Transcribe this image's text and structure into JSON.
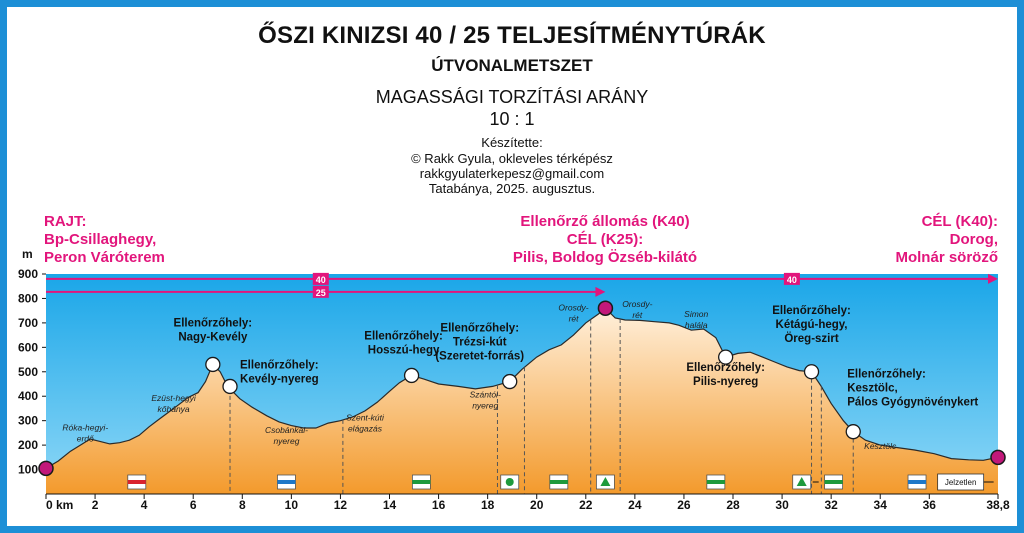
{
  "header": {
    "title": "ŐSZI KINIZSI 40 / 25 TELJESÍTMÉNYTÚRÁK",
    "subtitle": "ÚTVONALMETSZET",
    "ratio_label": "MAGASSÁGI TORZÍTÁSI ARÁNY",
    "ratio_value": "10 : 1",
    "credits": [
      "Készítette:",
      "© Rakk Gyula, okleveles térképész",
      "rakkgyulaterkepesz@gmail.com",
      "Tatabánya, 2025. augusztus."
    ]
  },
  "endpoints": {
    "start": [
      "RAJT:",
      "Bp-Csillaghegy,",
      "Peron Váróterem"
    ],
    "middle": [
      "Ellenőrző állomás (K40)",
      "CÉL (K25):",
      "Pilis, Boldog Özséb-kilátó"
    ],
    "end": [
      "CÉL (K40):",
      "Dorog,",
      "Molnár söröző"
    ]
  },
  "colors": {
    "frame": "#1d8fd6",
    "magenta": "#e2157c",
    "sky_top": "#1aa6e8",
    "sky_bottom": "#8fd8f7",
    "terrain_top": "#fff0dc",
    "terrain_bottom": "#f39a2c"
  },
  "chart_data": {
    "type": "area",
    "y_unit": "m",
    "x_unit": "km",
    "ylim": [
      0,
      900
    ],
    "xlim": [
      0,
      38.8
    ],
    "y_ticks": [
      100,
      200,
      300,
      400,
      500,
      600,
      700,
      800,
      900
    ],
    "x_ticks": [
      {
        "v": 0,
        "label": "0 km"
      },
      {
        "v": 2,
        "label": "2"
      },
      {
        "v": 4,
        "label": "4"
      },
      {
        "v": 6,
        "label": "6"
      },
      {
        "v": 8,
        "label": "8"
      },
      {
        "v": 10,
        "label": "10"
      },
      {
        "v": 12,
        "label": "12"
      },
      {
        "v": 14,
        "label": "14"
      },
      {
        "v": 16,
        "label": "16"
      },
      {
        "v": 18,
        "label": "18"
      },
      {
        "v": 20,
        "label": "20"
      },
      {
        "v": 22,
        "label": "22"
      },
      {
        "v": 24,
        "label": "24"
      },
      {
        "v": 26,
        "label": "26"
      },
      {
        "v": 28,
        "label": "28"
      },
      {
        "v": 30,
        "label": "30"
      },
      {
        "v": 32,
        "label": "32"
      },
      {
        "v": 34,
        "label": "34"
      },
      {
        "v": 36,
        "label": "36"
      },
      {
        "v": 38.8,
        "label": "38,8"
      }
    ],
    "profile": [
      [
        0,
        105
      ],
      [
        0.5,
        135
      ],
      [
        1.0,
        175
      ],
      [
        1.4,
        200
      ],
      [
        1.8,
        225
      ],
      [
        2.2,
        215
      ],
      [
        2.6,
        205
      ],
      [
        3.0,
        210
      ],
      [
        3.4,
        220
      ],
      [
        3.8,
        240
      ],
      [
        4.2,
        275
      ],
      [
        4.6,
        305
      ],
      [
        5.0,
        335
      ],
      [
        5.4,
        365
      ],
      [
        5.8,
        395
      ],
      [
        6.2,
        415
      ],
      [
        6.5,
        460
      ],
      [
        6.8,
        530
      ],
      [
        7.1,
        500
      ],
      [
        7.4,
        440
      ],
      [
        7.9,
        390
      ],
      [
        8.4,
        355
      ],
      [
        9.0,
        320
      ],
      [
        9.5,
        295
      ],
      [
        10.0,
        280
      ],
      [
        10.5,
        270
      ],
      [
        11.0,
        270
      ],
      [
        11.5,
        290
      ],
      [
        12.0,
        300
      ],
      [
        12.5,
        315
      ],
      [
        13.0,
        340
      ],
      [
        13.5,
        375
      ],
      [
        14.0,
        420
      ],
      [
        14.4,
        455
      ],
      [
        14.9,
        485
      ],
      [
        15.4,
        470
      ],
      [
        16.0,
        450
      ],
      [
        16.8,
        440
      ],
      [
        17.5,
        430
      ],
      [
        18.2,
        440
      ],
      [
        18.9,
        460
      ],
      [
        19.4,
        510
      ],
      [
        20.0,
        560
      ],
      [
        20.5,
        590
      ],
      [
        21.0,
        610
      ],
      [
        21.5,
        650
      ],
      [
        22.0,
        700
      ],
      [
        22.5,
        735
      ],
      [
        22.8,
        760
      ],
      [
        23.2,
        720
      ],
      [
        23.6,
        712
      ],
      [
        24.2,
        710
      ],
      [
        24.8,
        705
      ],
      [
        25.4,
        700
      ],
      [
        25.8,
        690
      ],
      [
        26.3,
        670
      ],
      [
        26.8,
        675
      ],
      [
        27.3,
        640
      ],
      [
        27.7,
        560
      ],
      [
        28.2,
        575
      ],
      [
        28.7,
        580
      ],
      [
        29.2,
        560
      ],
      [
        29.7,
        540
      ],
      [
        30.2,
        520
      ],
      [
        30.7,
        505
      ],
      [
        31.2,
        500
      ],
      [
        31.6,
        440
      ],
      [
        32.0,
        370
      ],
      [
        32.5,
        300
      ],
      [
        32.9,
        255
      ],
      [
        33.4,
        220
      ],
      [
        34.0,
        200
      ],
      [
        34.7,
        190
      ],
      [
        35.4,
        180
      ],
      [
        36.2,
        165
      ],
      [
        36.9,
        145
      ],
      [
        37.6,
        140
      ],
      [
        38.2,
        138
      ],
      [
        38.8,
        150
      ]
    ],
    "points": [
      {
        "km": 6.8,
        "m": 530,
        "style": "checkpoint",
        "label": [
          "Ellenőrzőhely:",
          "Nagy-Kevély"
        ],
        "anchor": "middle",
        "dx": 0,
        "dy": -38
      },
      {
        "km": 7.5,
        "m": 440,
        "style": "checkpoint",
        "label": [
          "Ellenőrzőhely:",
          "Kevély-nyereg"
        ],
        "anchor": "start",
        "dx": 10,
        "dy": -18
      },
      {
        "km": 14.9,
        "m": 485,
        "style": "checkpoint",
        "label": [
          "Ellenőrzőhely:",
          "Hosszú-hegy"
        ],
        "anchor": "middle",
        "dx": -8,
        "dy": -36
      },
      {
        "km": 18.9,
        "m": 460,
        "style": "checkpoint",
        "label": [
          "Ellenőrzőhely:",
          "Trézsi-kút",
          "(Szeretet-forrás)"
        ],
        "anchor": "middle",
        "dx": -30,
        "dy": -50
      },
      {
        "km": 27.7,
        "m": 560,
        "style": "checkpoint",
        "label": [
          "Ellenőrzőhely:",
          "Pilis-nyereg"
        ],
        "anchor": "middle",
        "dx": 0,
        "dy": 14
      },
      {
        "km": 31.2,
        "m": 500,
        "style": "checkpoint",
        "label": [
          "Ellenőrzőhely:",
          "Kétágú-hegy,",
          "Öreg-szirt"
        ],
        "anchor": "middle",
        "dx": 0,
        "dy": -58
      },
      {
        "km": 32.9,
        "m": 255,
        "style": "checkpoint",
        "label": [
          "Ellenőrzőhely:",
          "Kesztölc,",
          "Pálos Gyógynövénykert"
        ],
        "anchor": "start",
        "dx": -6,
        "dy": -54
      },
      {
        "km": 0,
        "m": 105,
        "style": "station",
        "label": [],
        "anchor": "middle",
        "dx": 0,
        "dy": 0
      },
      {
        "km": 22.8,
        "m": 760,
        "style": "station",
        "label": [],
        "anchor": "middle",
        "dx": 0,
        "dy": 0
      },
      {
        "km": 38.8,
        "m": 150,
        "style": "station",
        "label": [],
        "anchor": "middle",
        "dx": 0,
        "dy": 0
      }
    ],
    "place_labels": [
      {
        "km": 1.6,
        "m": 260,
        "text": [
          "Róka-hegyi-",
          "erdő"
        ]
      },
      {
        "km": 5.2,
        "m": 380,
        "text": [
          "Ezüst-hegyi",
          "kőbánya"
        ]
      },
      {
        "km": 9.8,
        "m": 250,
        "text": [
          "Csobánkai-",
          "nyereg"
        ]
      },
      {
        "km": 13.0,
        "m": 300,
        "text": [
          "Szent-kúti",
          "elágazás"
        ]
      },
      {
        "km": 17.9,
        "m": 395,
        "text": [
          "Szántói-",
          "nyereg"
        ]
      },
      {
        "km": 21.5,
        "m": 750,
        "text": [
          "Orosdy-",
          "rét"
        ]
      },
      {
        "km": 24.1,
        "m": 765,
        "text": [
          "Orosdy-",
          "rét"
        ]
      },
      {
        "km": 26.5,
        "m": 725,
        "text": [
          "Simon",
          "halála"
        ]
      },
      {
        "km": 34.0,
        "m": 185,
        "text": [
          "Kesztölc"
        ]
      }
    ],
    "dashed_lines_km": [
      7.5,
      12.1,
      18.4,
      19.5,
      22.2,
      23.4,
      31.2,
      31.6,
      32.9
    ],
    "route_arrows": [
      {
        "label": "40",
        "m": 880,
        "x_from": 0,
        "x_to": 38.8,
        "label_km": [
          11.2,
          30.4
        ]
      },
      {
        "label": "25",
        "m": 827,
        "x_from": 0,
        "x_to": 22.8,
        "label_km": [
          11.2
        ]
      }
    ],
    "trail_markers": [
      {
        "km": 3.7,
        "type": "red-bar"
      },
      {
        "km": 9.8,
        "type": "blue-bar"
      },
      {
        "km": 15.3,
        "type": "green-bar"
      },
      {
        "km": 18.9,
        "type": "green-circle"
      },
      {
        "km": 20.9,
        "type": "green-bar"
      },
      {
        "km": 22.8,
        "type": "green-triangle"
      },
      {
        "km": 27.3,
        "type": "green-bar"
      },
      {
        "km": 30.8,
        "type": "green-triangle-arrow"
      },
      {
        "km": 32.1,
        "type": "green-bar"
      },
      {
        "km": 35.5,
        "type": "blue-bar"
      },
      {
        "km": 37.4,
        "type": "unmarked",
        "text": "Jelzetlen"
      }
    ]
  }
}
